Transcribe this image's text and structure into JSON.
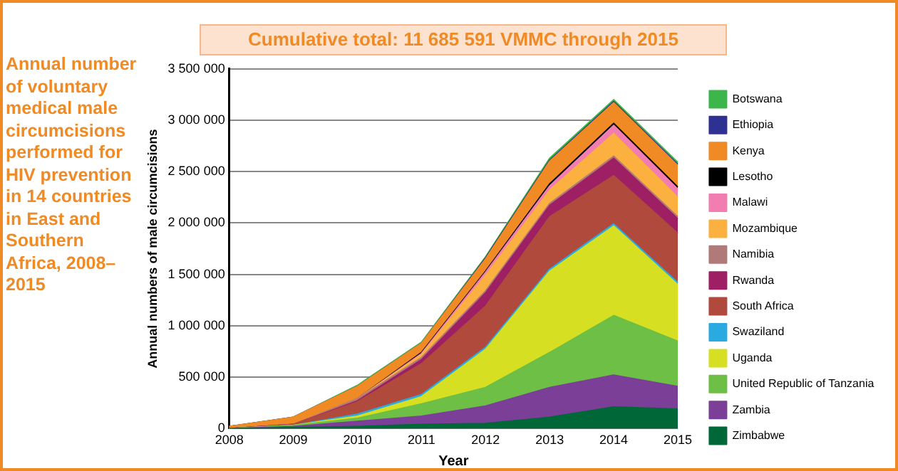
{
  "chart_data": {
    "type": "area",
    "title": "Annual number of voluntary medical male circumcisions performed for HIV prevention in 14 countries in East and Southern Africa, 2008–2015",
    "subtitle": "Cumulative total: 11 685 591 VMMC through 2015",
    "xlabel": "Year",
    "ylabel": "Annual numbers of male circumcisions",
    "categories": [
      "2008",
      "2009",
      "2010",
      "2011",
      "2012",
      "2013",
      "2014",
      "2015"
    ],
    "stacked": true,
    "ylim": [
      0,
      3500000
    ],
    "yticks": [
      0,
      {
        "value": 500000,
        "label": "500 000"
      },
      {
        "value": 1000000,
        "label": "1 000 000"
      },
      {
        "value": 1500000,
        "label": "1 500 000"
      },
      {
        "value": 2000000,
        "label": "2 000 000"
      },
      {
        "value": 2500000,
        "label": "2 500 000"
      },
      {
        "value": 3000000,
        "label": "3 000 000"
      },
      {
        "value": 3500000,
        "label": "3 500 000"
      }
    ],
    "grid": "y",
    "legend": "right",
    "series": [
      {
        "name": "Zimbabwe",
        "color": "#006838",
        "values": [
          0,
          10000,
          20000,
          40000,
          50000,
          110000,
          210000,
          190000
        ]
      },
      {
        "name": "Zambia",
        "color": "#7b3f98",
        "values": [
          0,
          10000,
          50000,
          80000,
          170000,
          290000,
          310000,
          220000
        ]
      },
      {
        "name": "United Republic of Tanzania",
        "color": "#6dbf45",
        "values": [
          0,
          10000,
          30000,
          120000,
          180000,
          340000,
          580000,
          440000
        ]
      },
      {
        "name": "Uganda",
        "color": "#d7df23",
        "values": [
          0,
          0,
          20000,
          70000,
          370000,
          790000,
          870000,
          550000
        ]
      },
      {
        "name": "Swaziland",
        "color": "#29abe2",
        "values": [
          0,
          0,
          20000,
          20000,
          20000,
          20000,
          20000,
          20000
        ]
      },
      {
        "name": "South Africa",
        "color": "#b04a3c",
        "values": [
          0,
          10000,
          120000,
          300000,
          400000,
          510000,
          470000,
          480000
        ]
      },
      {
        "name": "Rwanda",
        "color": "#9e1f63",
        "values": [
          0,
          0,
          10000,
          40000,
          130000,
          110000,
          170000,
          140000
        ]
      },
      {
        "name": "Namibia",
        "color": "#b07a78",
        "values": [
          0,
          0,
          20000,
          20000,
          20000,
          20000,
          20000,
          20000
        ]
      },
      {
        "name": "Mozambique",
        "color": "#fbb040",
        "values": [
          0,
          0,
          0,
          30000,
          150000,
          130000,
          220000,
          190000
        ]
      },
      {
        "name": "Malawi",
        "color": "#f27db0",
        "values": [
          0,
          0,
          0,
          10000,
          30000,
          40000,
          80000,
          80000
        ]
      },
      {
        "name": "Lesotho",
        "color": "#000000",
        "values": [
          0,
          0,
          0,
          10000,
          10000,
          20000,
          20000,
          20000
        ]
      },
      {
        "name": "Kenya",
        "color": "#f08a24",
        "values": [
          20000,
          70000,
          120000,
          90000,
          120000,
          220000,
          200000,
          210000
        ]
      },
      {
        "name": "Ethiopia",
        "color": "#2e3192",
        "values": [
          0,
          0,
          0,
          0,
          10000,
          10000,
          10000,
          10000
        ]
      },
      {
        "name": "Botswana",
        "color": "#3cb54a",
        "values": [
          0,
          0,
          10000,
          10000,
          10000,
          20000,
          20000,
          20000
        ]
      }
    ]
  }
}
